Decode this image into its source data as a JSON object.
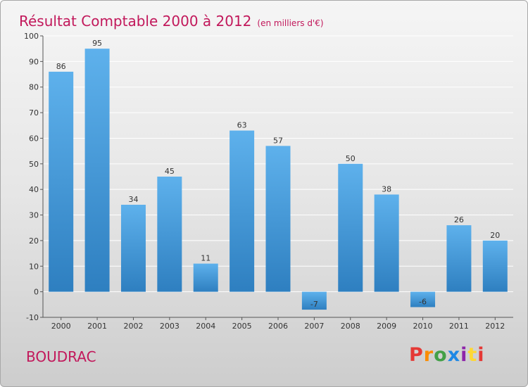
{
  "header": {
    "title": "Résultat Comptable 2000 à 2012",
    "unit": "(en milliers d'€)"
  },
  "footer": {
    "commune": "BOUDRAC",
    "logo_letters": [
      {
        "char": "P",
        "color": "#e53935"
      },
      {
        "char": "r",
        "color": "#fb8c00"
      },
      {
        "char": "o",
        "color": "#43a047"
      },
      {
        "char": "x",
        "color": "#1e88e5"
      },
      {
        "char": "i",
        "color": "#8e24aa"
      },
      {
        "char": "t",
        "color": "#fdd835"
      },
      {
        "char": "i",
        "color": "#e53935"
      }
    ]
  },
  "colors": {
    "title": "#c2185b",
    "bar_top": "#5eb1ec",
    "bar_bottom": "#2e7fc0",
    "gridline": "#ffffff",
    "axis": "#555555"
  },
  "chart_data": {
    "type": "bar",
    "title": "Résultat Comptable 2000 à 2012",
    "subtitle": "(en milliers d'€)",
    "categories": [
      "2000",
      "2001",
      "2002",
      "2003",
      "2004",
      "2005",
      "2006",
      "2007",
      "2008",
      "2009",
      "2010",
      "2011",
      "2012"
    ],
    "values": [
      86,
      95,
      34,
      45,
      11,
      63,
      57,
      -7,
      50,
      38,
      -6,
      26,
      20
    ],
    "yticks": [
      -10,
      0,
      10,
      20,
      30,
      40,
      50,
      60,
      70,
      80,
      90,
      100
    ],
    "ylim": [
      -10,
      100
    ],
    "xlabel": "",
    "ylabel": "",
    "grid": true,
    "data_labels": true
  }
}
